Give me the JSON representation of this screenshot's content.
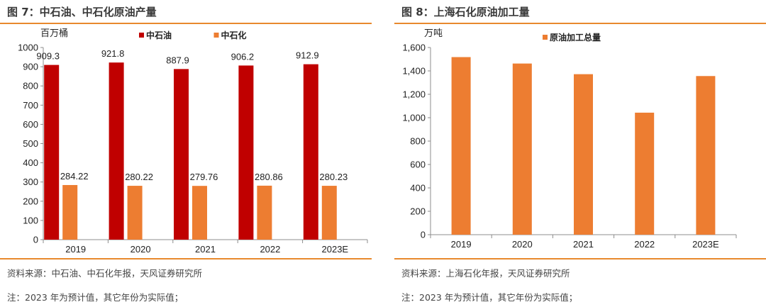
{
  "colors": {
    "accent": "#e8892e",
    "red": "#c00000",
    "orange": "#ed7d31"
  },
  "left": {
    "figure_title": "图 7：中石油、中石化原油产量",
    "source": "资料来源：中石油、中石化年报，天风证券研究所",
    "note": "注：2023 年为预计值，其它年份为实际值；"
  },
  "right": {
    "figure_title": "图 8：上海石化原油加工量",
    "source": "资料来源：上海石化年报，天风证券研究所",
    "note": "注：2023 年为预计值，其它年份为实际值；"
  },
  "chart_data": [
    {
      "type": "bar",
      "title": "中石油、中石化原油产量",
      "ylabel": "百万桶",
      "categories": [
        "2019",
        "2020",
        "2021",
        "2022",
        "2023E"
      ],
      "ylim": [
        0,
        1000
      ],
      "yticks": [
        "0",
        "100",
        "200",
        "300",
        "400",
        "500",
        "600",
        "700",
        "800",
        "900",
        "1000"
      ],
      "series": [
        {
          "name": "中石油",
          "color": "#c00000",
          "values": [
            909.3,
            921.8,
            887.9,
            906.2,
            912.9
          ],
          "labels": [
            "909.3",
            "921.8",
            "887.9",
            "906.2",
            "912.9"
          ]
        },
        {
          "name": "中石化",
          "color": "#ed7d31",
          "values": [
            284.22,
            280.22,
            279.76,
            280.86,
            280.23
          ],
          "labels": [
            "284.22",
            "280.22",
            "279.76",
            "280.86",
            "280.23"
          ]
        }
      ],
      "legend_position": "top-center",
      "grid": false
    },
    {
      "type": "bar",
      "title": "上海石化原油加工量",
      "ylabel": "万吨",
      "categories": [
        "2019",
        "2020",
        "2021",
        "2022",
        "2023E"
      ],
      "ylim": [
        0,
        1600
      ],
      "yticks": [
        "0",
        "200",
        "400",
        "600",
        "800",
        "1,000",
        "1,200",
        "1,400",
        "1,600"
      ],
      "series": [
        {
          "name": "原油加工总量",
          "color": "#ed7d31",
          "values": [
            1518,
            1463,
            1372,
            1043,
            1356
          ]
        }
      ],
      "legend_position": "top-center",
      "grid": false
    }
  ]
}
